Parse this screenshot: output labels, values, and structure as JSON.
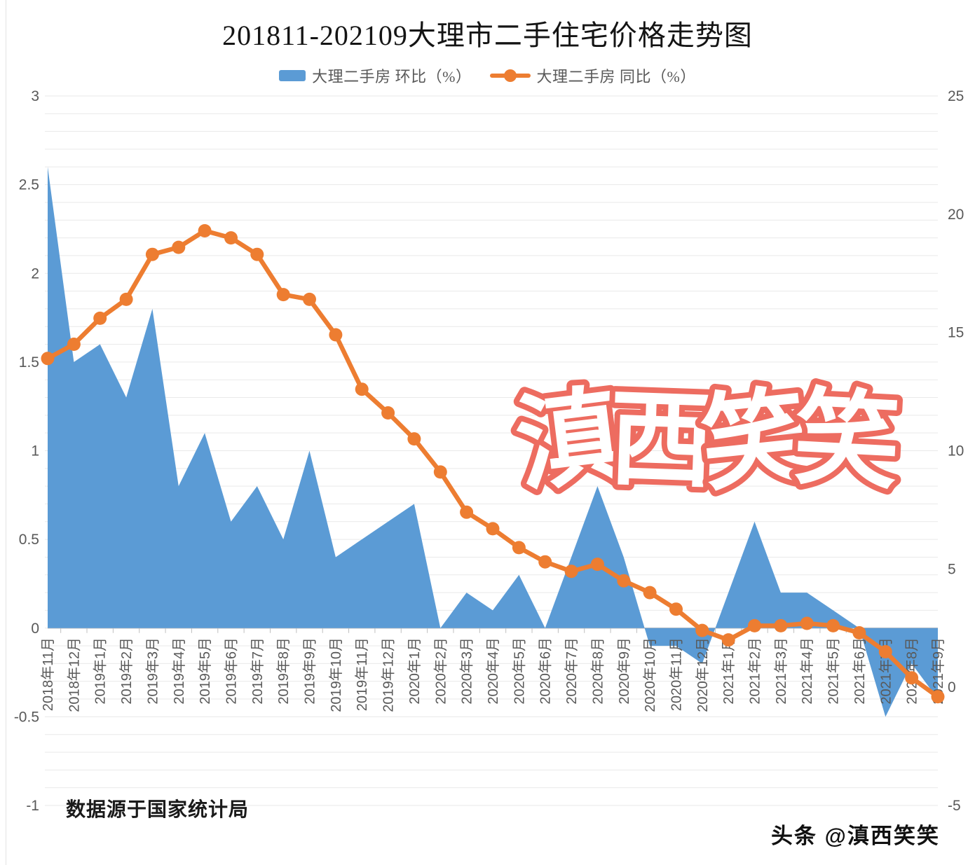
{
  "title": "201811-202109大理市二手住宅价格走势图",
  "legend": {
    "items": [
      {
        "label": "大理二手房 环比（%）",
        "type": "area",
        "color": "#5B9BD5"
      },
      {
        "label": "大理二手房 同比（%）",
        "type": "line",
        "color": "#ED7D31"
      }
    ]
  },
  "watermark": {
    "text": "滇西笑笑",
    "stroke_color": "#ed6c60",
    "fill_color": "#ffffff"
  },
  "footnote": "数据源于国家统计局",
  "credit": "头条 @滇西笑笑",
  "colors": {
    "area_series": "#5B9BD5",
    "line_series": "#ED7D31",
    "gridline": "#e9e9e9",
    "axis_line": "#bfbfbf",
    "tick_label": "#595959"
  },
  "chart_data": {
    "type": "area+line combo, dual axis",
    "title": "201811-202109大理市二手住宅价格走势图",
    "categories": [
      "2018年11月",
      "2018年12月",
      "2019年1月",
      "2019年2月",
      "2019年3月",
      "2019年4月",
      "2019年5月",
      "2019年6月",
      "2019年7月",
      "2019年8月",
      "2019年9月",
      "2019年10月",
      "2019年11月",
      "2019年12月",
      "2020年1月",
      "2020年2月",
      "2020年3月",
      "2020年4月",
      "2020年5月",
      "2020年6月",
      "2020年7月",
      "2020年8月",
      "2020年9月",
      "2020年10月",
      "2020年11月",
      "2020年12月",
      "2021年1月",
      "2021年2月",
      "2021年3月",
      "2021年4月",
      "2021年5月",
      "2021年6月",
      "2021年7月",
      "2021年8月",
      "2021年9月"
    ],
    "series": [
      {
        "name": "大理二手房 环比（%）",
        "type": "area",
        "axis": "left",
        "color": "#5B9BD5",
        "values": [
          2.6,
          1.5,
          1.6,
          1.3,
          1.8,
          0.8,
          1.1,
          0.6,
          0.8,
          0.5,
          1.0,
          0.4,
          0.5,
          0.6,
          0.7,
          0.0,
          0.2,
          0.1,
          0.3,
          0.0,
          0.4,
          0.8,
          0.4,
          -0.1,
          -0.1,
          -0.2,
          0.2,
          0.6,
          0.2,
          0.2,
          0.1,
          0.0,
          -0.5,
          -0.2,
          -0.4
        ]
      },
      {
        "name": "大理二手房 同比（%）",
        "type": "line",
        "axis": "right",
        "color": "#ED7D31",
        "values": [
          13.9,
          14.5,
          15.6,
          16.4,
          18.3,
          18.6,
          19.3,
          19.0,
          18.3,
          16.6,
          16.4,
          14.9,
          12.6,
          11.6,
          10.5,
          9.1,
          7.4,
          6.7,
          5.9,
          5.3,
          4.9,
          5.2,
          4.5,
          4.0,
          3.3,
          2.4,
          2.0,
          2.6,
          2.6,
          2.7,
          2.6,
          2.3,
          1.5,
          0.4,
          -0.4
        ]
      }
    ],
    "left_axis": {
      "min": -1,
      "max": 3,
      "ticks": [
        3,
        2.5,
        2,
        1.5,
        1,
        0.5,
        0,
        -0.5,
        -1
      ]
    },
    "right_axis": {
      "min": -5,
      "max": 25,
      "ticks": [
        25,
        20,
        15,
        10,
        5,
        0,
        -5
      ]
    },
    "grid": "faint horizontal minor gridlines every 0.1 (left-axis units)",
    "legend_position": "top",
    "x_label_rotation": -90
  }
}
